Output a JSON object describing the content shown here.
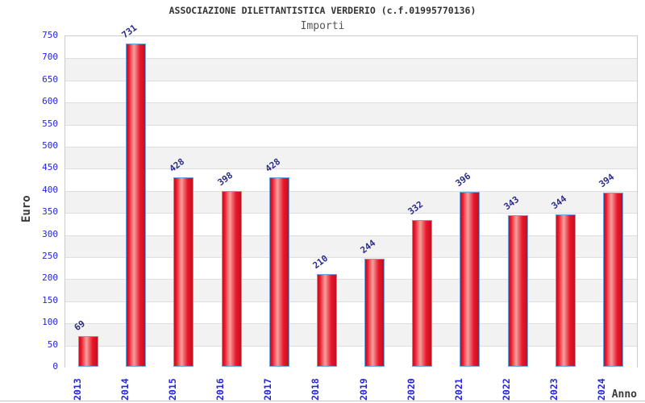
{
  "chart_data": {
    "type": "bar",
    "title": "ASSOCIAZIONE DILETTANTISTICA VERDERIO (c.f.01995770136)",
    "subtitle": "Importi",
    "xlabel": "Anno",
    "ylabel": "Euro",
    "categories": [
      "2013",
      "2014",
      "2015",
      "2016",
      "2017",
      "2018",
      "2019",
      "2020",
      "2021",
      "2022",
      "2023",
      "2024"
    ],
    "values": [
      69,
      731,
      428,
      398,
      428,
      210,
      244,
      332,
      396,
      343,
      344,
      394
    ],
    "ylim": [
      0,
      750
    ],
    "ytick_step": 50,
    "grid": true,
    "legend": "none",
    "colors": {
      "bar_edge": "#c01020",
      "bar_main": "#e8192c",
      "bar_highlight": "#f5a09c",
      "bar_border": "#6ba3e0",
      "tick_label": "#2424dd",
      "value_label": "#2c2c88",
      "band": "#f2f2f2",
      "gridline": "#dedede",
      "plot_border": "#cccccc",
      "title": "#333333",
      "subtitle": "#555555",
      "axis_title": "#3a3a3a"
    }
  }
}
